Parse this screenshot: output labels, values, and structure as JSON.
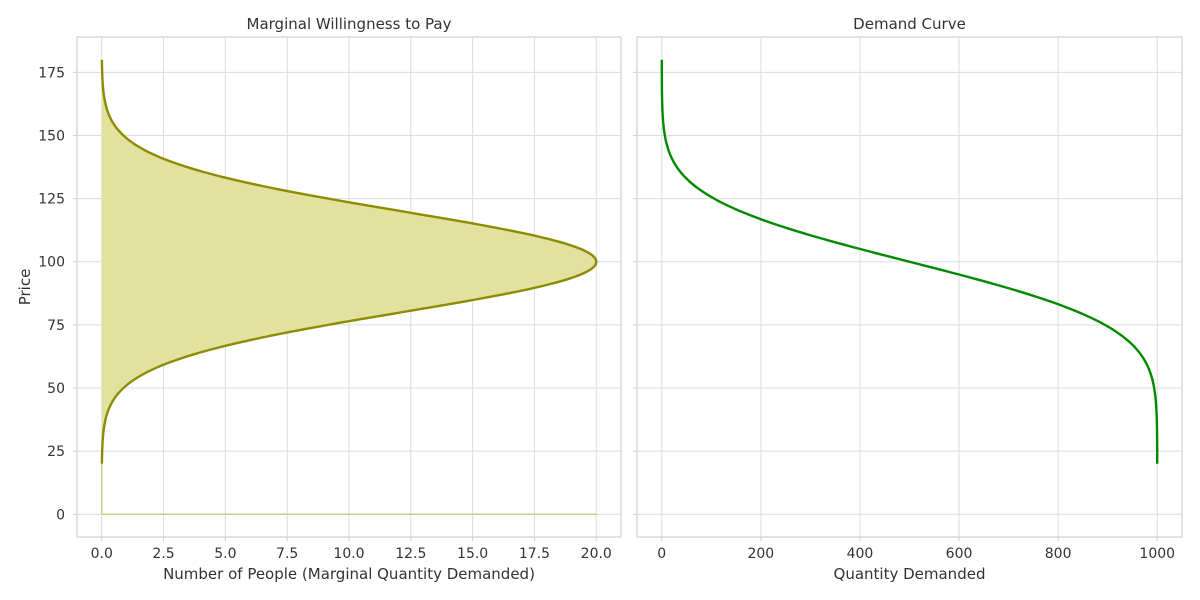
{
  "chart_data": [
    {
      "type": "area",
      "title": "Marginal Willingness to Pay",
      "xlabel": "Number of People (Marginal Quantity Demanded)",
      "ylabel": "Price",
      "xlim": [
        -1.0,
        21.0
      ],
      "ylim": [
        -9,
        189
      ],
      "xticks": [
        0.0,
        2.5,
        5.0,
        7.5,
        10.0,
        12.5,
        15.0,
        17.5,
        20.0
      ],
      "xtick_labels": [
        "0.0",
        "2.5",
        "5.0",
        "7.5",
        "10.0",
        "12.5",
        "15.0",
        "17.5",
        "20.0"
      ],
      "yticks": [
        0,
        25,
        50,
        75,
        100,
        125,
        150,
        175
      ],
      "ytick_labels": [
        "0",
        "25",
        "50",
        "75",
        "100",
        "125",
        "150",
        "175"
      ],
      "grid": true,
      "curve": {
        "description": "Gaussian marginal quantity demanded vs price",
        "peak_x": 20.0,
        "peak_y": 100,
        "sd": 20,
        "y_range": [
          20,
          180
        ],
        "color": "#8c8c00",
        "fill_color": "#e3e19f"
      },
      "baseline": {
        "y": 0,
        "x_range": [
          0,
          20
        ],
        "color": "#c8cf8a"
      }
    },
    {
      "type": "line",
      "title": "Demand Curve",
      "xlabel": "Quantity Demanded",
      "ylabel": "",
      "xlim": [
        -50,
        1050
      ],
      "ylim": [
        -9,
        189
      ],
      "xticks": [
        0,
        200,
        400,
        600,
        800,
        1000
      ],
      "xtick_labels": [
        "0",
        "200",
        "400",
        "600",
        "800",
        "1000"
      ],
      "yticks": [
        0,
        25,
        50,
        75,
        100,
        125,
        150,
        175
      ],
      "grid": true,
      "curve": {
        "description": "Cumulative quantity demanded (normal survival function) vs price",
        "total_quantity": 1000,
        "mean_price": 100,
        "sd": 20,
        "y_range": [
          20,
          180
        ],
        "color": "#008a00"
      }
    }
  ]
}
